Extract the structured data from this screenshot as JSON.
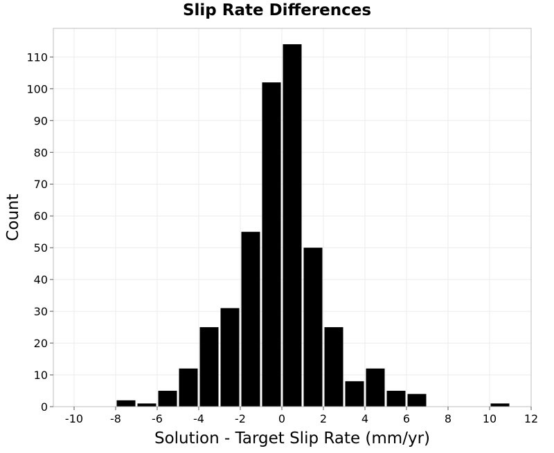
{
  "chart_data": {
    "type": "bar",
    "title": "Slip Rate Differences",
    "xlabel": "Solution - Target Slip Rate (mm/yr)",
    "ylabel": "Count",
    "xlim": [
      -11,
      12
    ],
    "ylim": [
      0,
      119
    ],
    "xticks": [
      -10,
      -8,
      -6,
      -4,
      -2,
      0,
      2,
      4,
      6,
      8,
      10,
      12
    ],
    "yticks": [
      0,
      10,
      20,
      30,
      40,
      50,
      60,
      70,
      80,
      90,
      100,
      110
    ],
    "bin_width": 1,
    "bins": [
      {
        "x": -8,
        "count": 2
      },
      {
        "x": -7,
        "count": 1
      },
      {
        "x": -6,
        "count": 5
      },
      {
        "x": -5,
        "count": 12
      },
      {
        "x": -4,
        "count": 25
      },
      {
        "x": -3,
        "count": 31
      },
      {
        "x": -2,
        "count": 55
      },
      {
        "x": -1,
        "count": 102
      },
      {
        "x": 0,
        "count": 114
      },
      {
        "x": 1,
        "count": 50
      },
      {
        "x": 2,
        "count": 25
      },
      {
        "x": 3,
        "count": 8
      },
      {
        "x": 4,
        "count": 12
      },
      {
        "x": 5,
        "count": 5
      },
      {
        "x": 6,
        "count": 4
      },
      {
        "x": 10,
        "count": 1
      }
    ],
    "bar_color": "#000000",
    "grid": true,
    "grid_color": "#ebebeb"
  }
}
